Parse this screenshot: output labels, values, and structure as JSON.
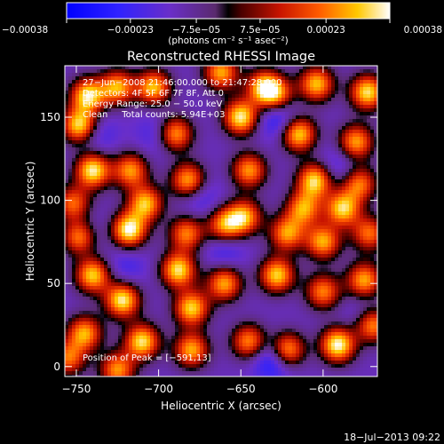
{
  "chart_data": {
    "type": "heatmap",
    "title": "Reconstructed RHESSI Image",
    "xlabel": "Heliocentric X (arcsec)",
    "ylabel": "Heliocentric Y (arcsec)",
    "xlim": [
      -757,
      -567
    ],
    "ylim": [
      -6,
      181
    ],
    "xticks": [
      -750,
      -700,
      -650,
      -600
    ],
    "xtick_labels": [
      "−750",
      "−700",
      "−650",
      "−600"
    ],
    "yticks": [
      0,
      50,
      100,
      150
    ],
    "ytick_labels": [
      "0",
      "50",
      "100",
      "150"
    ],
    "colorbar": {
      "range": [
        -0.00038,
        0.00038
      ],
      "tick_values": [
        -0.00038,
        -0.00023,
        -7.5e-05,
        7.5e-05,
        0.00023,
        0.00038
      ],
      "tick_labels": [
        "−0.00038",
        "−0.00023",
        "−7.5e−05",
        "7.5e−05",
        "0.00023",
        "0.00038"
      ],
      "unit_label": "(photons cm⁻² s⁻¹ asec⁻²)"
    },
    "annotations": [
      "27−Jun−2008 21:46:00.000 to 21:47:28.000",
      "Detectors: 4F 5F 6F 7F 8F, Att 0",
      "Energy Range: 25.0 − 50.0 keV",
      "Clean     Total counts: 5.94E+03"
    ],
    "peak_label": "Position of Peak = [−591,13]",
    "grid": false,
    "sources": [
      {
        "x": -743,
        "y": 163,
        "value": 0.00034
      },
      {
        "x": -725,
        "y": 168,
        "value": 0.00028
      },
      {
        "x": -703,
        "y": 168,
        "value": 0.0003
      },
      {
        "x": -662,
        "y": 177,
        "value": 0.00028
      },
      {
        "x": -628,
        "y": 163,
        "value": 0.00022
      },
      {
        "x": -604,
        "y": 170,
        "value": 0.0003
      },
      {
        "x": -573,
        "y": 165,
        "value": 0.00034
      },
      {
        "x": -748,
        "y": 145,
        "value": 0.00036
      },
      {
        "x": -690,
        "y": 140,
        "value": 0.0003
      },
      {
        "x": -650,
        "y": 150,
        "value": 0.00036
      },
      {
        "x": -615,
        "y": 140,
        "value": 0.00034
      },
      {
        "x": -580,
        "y": 135,
        "value": 0.00028
      },
      {
        "x": -740,
        "y": 118,
        "value": 0.00036
      },
      {
        "x": -717,
        "y": 118,
        "value": 0.00026
      },
      {
        "x": -682,
        "y": 112,
        "value": 0.0003
      },
      {
        "x": -645,
        "y": 118,
        "value": 0.00026
      },
      {
        "x": -605,
        "y": 112,
        "value": 0.00034
      },
      {
        "x": -578,
        "y": 110,
        "value": 0.00024
      },
      {
        "x": -752,
        "y": 98,
        "value": 0.00022
      },
      {
        "x": -708,
        "y": 98,
        "value": 0.0003
      },
      {
        "x": -648,
        "y": 90,
        "value": 0.00028
      },
      {
        "x": -588,
        "y": 95,
        "value": 0.00032
      },
      {
        "x": -748,
        "y": 78,
        "value": 0.00034
      },
      {
        "x": -718,
        "y": 82,
        "value": 0.00038
      },
      {
        "x": -683,
        "y": 80,
        "value": 0.00024
      },
      {
        "x": -660,
        "y": 85,
        "value": 0.00026
      },
      {
        "x": -622,
        "y": 80,
        "value": 0.00026
      },
      {
        "x": -600,
        "y": 75,
        "value": 0.00028
      },
      {
        "x": -572,
        "y": 80,
        "value": 0.00022
      },
      {
        "x": -740,
        "y": 55,
        "value": 0.00032
      },
      {
        "x": -722,
        "y": 40,
        "value": 0.00036
      },
      {
        "x": -688,
        "y": 58,
        "value": 0.00034
      },
      {
        "x": -680,
        "y": 35,
        "value": 0.00032
      },
      {
        "x": -660,
        "y": 50,
        "value": 0.00028
      },
      {
        "x": -628,
        "y": 55,
        "value": 0.00032
      },
      {
        "x": -600,
        "y": 45,
        "value": 0.00024
      },
      {
        "x": -575,
        "y": 52,
        "value": 0.00028
      },
      {
        "x": -745,
        "y": 20,
        "value": 0.00028
      },
      {
        "x": -710,
        "y": 15,
        "value": 0.00034
      },
      {
        "x": -680,
        "y": 10,
        "value": 0.00028
      },
      {
        "x": -645,
        "y": 15,
        "value": 0.00026
      },
      {
        "x": -622,
        "y": 10,
        "value": 0.00034
      },
      {
        "x": -591,
        "y": 13,
        "value": 0.00038
      },
      {
        "x": -570,
        "y": 25,
        "value": 0.0003
      },
      {
        "x": -725,
        "y": -2,
        "value": 0.00026
      },
      {
        "x": -755,
        "y": 5,
        "value": 0.00022
      },
      {
        "x": -612,
        "y": 95,
        "value": 0.00026
      },
      {
        "x": -636,
        "y": 168,
        "value": 0.0003
      }
    ],
    "minima": [
      {
        "x": -627,
        "y": 150,
        "value": -0.0002
      },
      {
        "x": -745,
        "y": 80,
        "value": -0.00014
      },
      {
        "x": -720,
        "y": 60,
        "value": -0.0001
      },
      {
        "x": -700,
        "y": 140,
        "value": -0.00012
      },
      {
        "x": -675,
        "y": 102,
        "value": -0.00012
      },
      {
        "x": -630,
        "y": 5,
        "value": -0.00024
      },
      {
        "x": -590,
        "y": 120,
        "value": -0.00012
      },
      {
        "x": -660,
        "y": 70,
        "value": -0.00012
      },
      {
        "x": -738,
        "y": 140,
        "value": -0.00012
      },
      {
        "x": -575,
        "y": 30,
        "value": -0.0001
      }
    ]
  },
  "footer": {
    "timestamp": "18−Jul−2013 09:22"
  }
}
